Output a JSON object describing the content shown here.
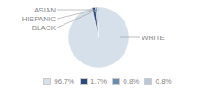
{
  "chart_data": {
    "type": "pie",
    "categories": [
      "WHITE",
      "ASIAN",
      "HISPANIC",
      "BLACK"
    ],
    "values": [
      96.7,
      1.7,
      0.8,
      0.8
    ],
    "value_labels": [
      "96.7%",
      "1.7%",
      "0.8%",
      "0.8%"
    ],
    "colors": [
      "#d6e0ea",
      "#2c4a7c",
      "#6b8cae",
      "#b8c8d8"
    ],
    "legend": "bottom"
  }
}
